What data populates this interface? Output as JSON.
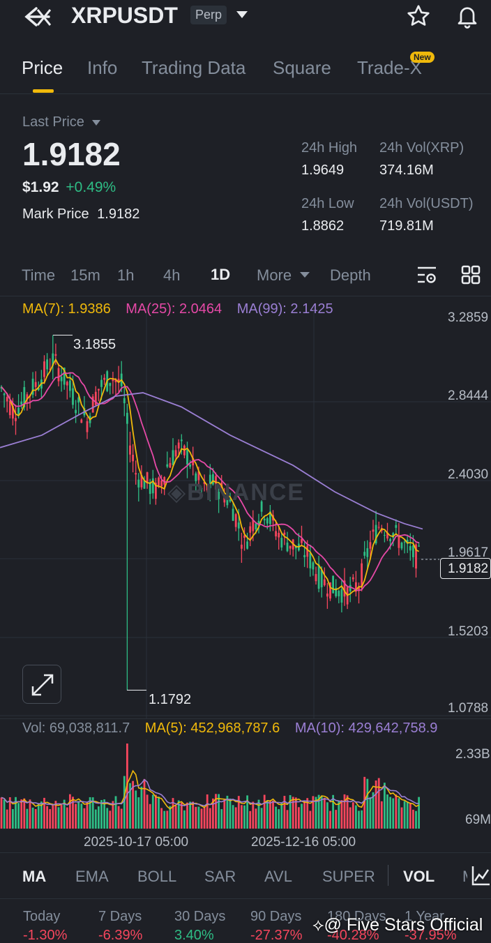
{
  "header": {
    "symbol": "XRPUSDT",
    "badge": "Perp",
    "icons": {
      "back": "back-arrow-icon",
      "dropdown": "caret-down-icon",
      "star": "star-icon",
      "bell": "bell-icon"
    }
  },
  "tabs": [
    {
      "label": "Price",
      "active": true
    },
    {
      "label": "Info"
    },
    {
      "label": "Trading Data"
    },
    {
      "label": "Square"
    },
    {
      "label": "Trade-X",
      "badge": "New"
    }
  ],
  "price": {
    "last_price_label": "Last Price",
    "last_price": "1.9182",
    "usd_price": "$1.92",
    "change": "+0.49%",
    "mark_price_label": "Mark Price",
    "mark_price": "1.9182"
  },
  "stats": {
    "high_label": "24h High",
    "high": "1.9649",
    "vol_xrp_label": "24h Vol(XRP)",
    "vol_xrp": "374.16M",
    "low_label": "24h Low",
    "low": "1.8862",
    "vol_usdt_label": "24h Vol(USDT)",
    "vol_usdt": "719.81M"
  },
  "timeframes": {
    "items": [
      "Time",
      "15m",
      "1h",
      "4h",
      "1D",
      "More",
      "Depth"
    ],
    "active": "1D"
  },
  "ma_legend": {
    "ma7": "MA(7): 1.9386",
    "ma25": "MA(25): 2.0464",
    "ma99": "MA(99): 2.1425"
  },
  "colors": {
    "up": "#2ebd85",
    "down": "#f6465d",
    "ma7": "#f0b90b",
    "ma25": "#e649a7",
    "ma99": "#9b7fd4",
    "accent": "#f0b90b"
  },
  "chart_data": {
    "type": "candlestick",
    "y_axis_ticks": [
      "3.2859",
      "2.8444",
      "2.4030",
      "1.9617",
      "1.5203",
      "1.0788"
    ],
    "y_range": [
      1.0788,
      3.2859
    ],
    "annotations": {
      "high": "3.1855",
      "low": "1.1792",
      "current": "1.9182"
    },
    "watermark": "BINANCE",
    "ma_lines": [
      "MA(7)",
      "MA(25)",
      "MA(99)"
    ]
  },
  "volume": {
    "vol_label": "Vol: 69,038,811.7",
    "ma5_label": "MA(5): 452,968,787.6",
    "ma10_label": "MA(10): 429,642,758.9",
    "top_tick": "2.33B",
    "bottom_tick": "69M"
  },
  "x_axis": [
    "2025-10-17 05:00",
    "2025-12-16 05:00"
  ],
  "indicator_tabs": [
    "MA",
    "EMA",
    "BOLL",
    "SAR",
    "AVL",
    "SUPER",
    "VOL",
    "M"
  ],
  "performance": [
    {
      "label": "Today",
      "value": "-1.30%"
    },
    {
      "label": "7 Days",
      "value": "-6.39%"
    },
    {
      "label": "30 Days",
      "value": "3.40%"
    },
    {
      "label": "90 Days",
      "value": "-27.37%"
    },
    {
      "label": "180 Days",
      "value": "-40.28%"
    },
    {
      "label": "1 Year",
      "value": "-37.95%"
    }
  ],
  "overlay_watermark": "@ Five Stars Official"
}
